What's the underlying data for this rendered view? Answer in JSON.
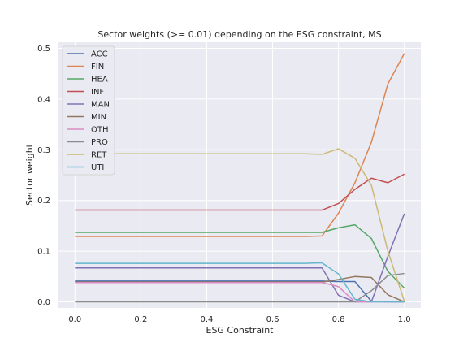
{
  "chart_data": {
    "type": "line",
    "title": "Sector weights (>= 0.01) depending on the ESG constraint, MS",
    "xlabel": "ESG Constraint",
    "ylabel": "Sector weight",
    "xlim": [
      -0.05,
      1.05
    ],
    "ylim": [
      -0.012,
      0.512
    ],
    "xticks": [
      0.0,
      0.2,
      0.4,
      0.6,
      0.8,
      1.0
    ],
    "xtick_labels": [
      "0.0",
      "0.2",
      "0.4",
      "0.6",
      "0.8",
      "1.0"
    ],
    "yticks": [
      0.0,
      0.1,
      0.2,
      0.3,
      0.4,
      0.5
    ],
    "ytick_labels": [
      "0.0",
      "0.1",
      "0.2",
      "0.3",
      "0.4",
      "0.5"
    ],
    "grid": true,
    "legend_position": "upper-left",
    "x": [
      0.0,
      0.05,
      0.1,
      0.15,
      0.2,
      0.25,
      0.3,
      0.35,
      0.4,
      0.45,
      0.5,
      0.55,
      0.6,
      0.65,
      0.7,
      0.75,
      0.8,
      0.85,
      0.9,
      0.95,
      1.0
    ],
    "series": [
      {
        "name": "ACC",
        "color": "#4c72b0",
        "values": [
          0.041,
          0.041,
          0.041,
          0.041,
          0.041,
          0.041,
          0.041,
          0.041,
          0.041,
          0.041,
          0.041,
          0.041,
          0.041,
          0.041,
          0.041,
          0.041,
          0.04,
          0.04,
          0.001,
          0.0,
          0.0
        ]
      },
      {
        "name": "FIN",
        "color": "#dd8452",
        "values": [
          0.129,
          0.129,
          0.129,
          0.129,
          0.129,
          0.129,
          0.129,
          0.129,
          0.129,
          0.129,
          0.129,
          0.129,
          0.129,
          0.129,
          0.129,
          0.13,
          0.175,
          0.235,
          0.315,
          0.43,
          0.49
        ]
      },
      {
        "name": "HEA",
        "color": "#55a868",
        "values": [
          0.137,
          0.137,
          0.137,
          0.137,
          0.137,
          0.137,
          0.137,
          0.137,
          0.137,
          0.137,
          0.137,
          0.137,
          0.137,
          0.137,
          0.137,
          0.137,
          0.146,
          0.152,
          0.125,
          0.06,
          0.027
        ]
      },
      {
        "name": "INF",
        "color": "#c44e52",
        "values": [
          0.181,
          0.181,
          0.181,
          0.181,
          0.181,
          0.181,
          0.181,
          0.181,
          0.181,
          0.181,
          0.181,
          0.181,
          0.181,
          0.181,
          0.181,
          0.181,
          0.194,
          0.222,
          0.244,
          0.235,
          0.252
        ]
      },
      {
        "name": "MAN",
        "color": "#8172b3",
        "values": [
          0.067,
          0.067,
          0.067,
          0.067,
          0.067,
          0.067,
          0.067,
          0.067,
          0.067,
          0.067,
          0.067,
          0.067,
          0.067,
          0.067,
          0.067,
          0.067,
          0.013,
          0.0,
          0.0,
          0.09,
          0.174
        ]
      },
      {
        "name": "MIN",
        "color": "#937860",
        "values": [
          0.039,
          0.039,
          0.039,
          0.039,
          0.039,
          0.039,
          0.039,
          0.039,
          0.039,
          0.039,
          0.039,
          0.039,
          0.039,
          0.039,
          0.039,
          0.039,
          0.044,
          0.05,
          0.048,
          0.014,
          0.0
        ]
      },
      {
        "name": "OTH",
        "color": "#da8bc3",
        "values": [
          0.038,
          0.038,
          0.038,
          0.038,
          0.038,
          0.038,
          0.038,
          0.038,
          0.038,
          0.038,
          0.038,
          0.038,
          0.038,
          0.038,
          0.038,
          0.038,
          0.03,
          0.0,
          0.0,
          0.0,
          0.0
        ]
      },
      {
        "name": "PRO",
        "color": "#8c8c8c",
        "values": [
          0.0,
          0.0,
          0.0,
          0.0,
          0.0,
          0.0,
          0.0,
          0.0,
          0.0,
          0.0,
          0.0,
          0.0,
          0.0,
          0.0,
          0.0,
          0.0,
          0.0,
          0.0,
          0.022,
          0.052,
          0.056
        ]
      },
      {
        "name": "RET",
        "color": "#ccb974",
        "values": [
          0.292,
          0.292,
          0.292,
          0.292,
          0.292,
          0.292,
          0.292,
          0.292,
          0.292,
          0.292,
          0.292,
          0.292,
          0.292,
          0.292,
          0.292,
          0.291,
          0.302,
          0.283,
          0.23,
          0.1,
          0.001
        ]
      },
      {
        "name": "UTI",
        "color": "#64b5cd",
        "values": [
          0.076,
          0.076,
          0.076,
          0.076,
          0.076,
          0.076,
          0.076,
          0.076,
          0.076,
          0.076,
          0.076,
          0.076,
          0.076,
          0.076,
          0.076,
          0.077,
          0.055,
          0.005,
          0.0,
          0.0,
          0.0
        ]
      }
    ]
  }
}
